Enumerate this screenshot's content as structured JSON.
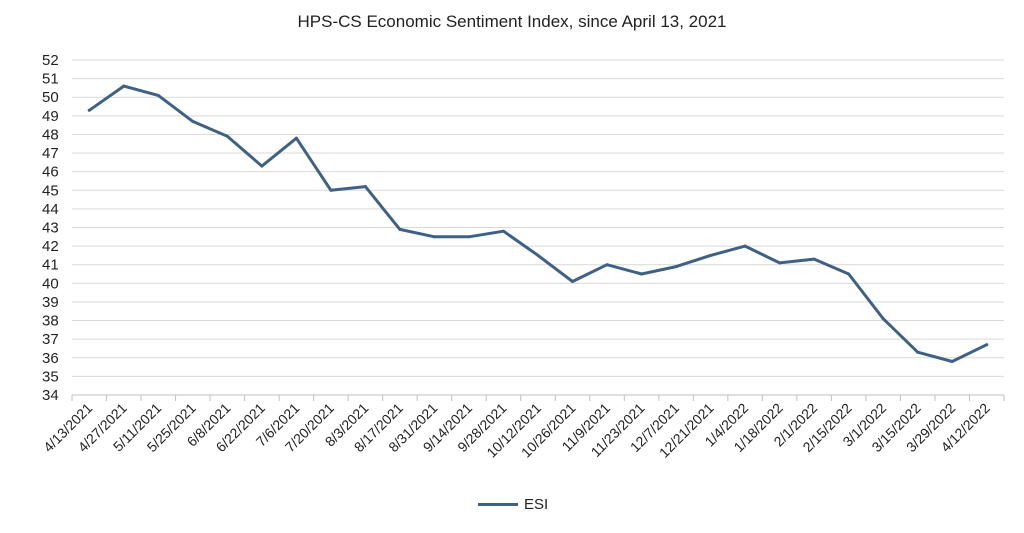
{
  "chart_data": {
    "type": "line",
    "title": "HPS-CS Economic Sentiment Index, since April 13, 2021",
    "xlabel": "",
    "ylabel": "",
    "ylim": [
      34,
      52
    ],
    "ytick_step": 1,
    "grid": true,
    "legend_position": "bottom",
    "line_color": "#3e6185",
    "grid_color": "#d9d9d9",
    "categories": [
      "4/13/2021",
      "4/27/2021",
      "5/11/2021",
      "5/25/2021",
      "6/8/2021",
      "6/22/2021",
      "7/6/2021",
      "7/20/2021",
      "8/3/2021",
      "8/17/2021",
      "8/31/2021",
      "9/14/2021",
      "9/28/2021",
      "10/12/2021",
      "10/26/2021",
      "11/9/2021",
      "11/23/2021",
      "12/7/2021",
      "12/21/2021",
      "1/4/2022",
      "1/18/2022",
      "2/1/2022",
      "2/15/2022",
      "3/1/2022",
      "3/15/2022",
      "3/29/2022",
      "4/12/2022"
    ],
    "series": [
      {
        "name": "ESI",
        "values": [
          49.3,
          50.6,
          50.1,
          48.7,
          47.9,
          46.3,
          47.8,
          45.0,
          45.2,
          42.9,
          42.5,
          42.5,
          42.8,
          41.5,
          40.1,
          41.0,
          40.5,
          40.9,
          41.5,
          42.0,
          41.1,
          41.3,
          40.5,
          38.1,
          36.3,
          35.8,
          36.7
        ]
      }
    ]
  }
}
